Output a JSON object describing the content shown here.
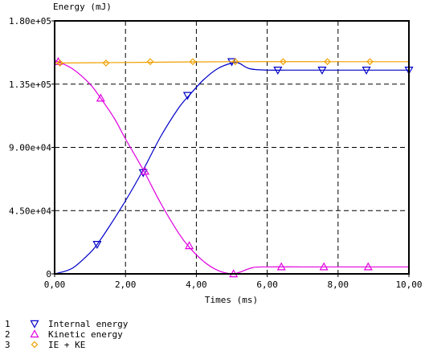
{
  "chart_data": {
    "type": "line",
    "ylabel": "Energy (mJ)",
    "xlabel": "Times (ms)",
    "xlim": [
      0,
      10
    ],
    "ylim": [
      0,
      180000
    ],
    "x_ticks": [
      "0,00",
      "2,00",
      "4,00",
      "6,00",
      "8,00",
      "10,00"
    ],
    "y_ticks": [
      "0",
      "4.50e+04",
      "9.00e+04",
      "1.35e+05",
      "1.80e+05"
    ],
    "grid": true,
    "legend_position": "bottom-left",
    "series": [
      {
        "index": "1",
        "name": "Internal energy",
        "color": "#0000c8",
        "marker": "triangle-down",
        "x": [
          0,
          0.5,
          1.0,
          1.2,
          1.5,
          2.0,
          2.5,
          3.0,
          3.5,
          3.8,
          4.2,
          4.6,
          5.0,
          5.2,
          5.5,
          6.0,
          6.5,
          7.0,
          8.0,
          9.0,
          10.0
        ],
        "y": [
          0,
          4000,
          15000,
          21000,
          32000,
          52000,
          74000,
          98000,
          118000,
          127000,
          138000,
          146000,
          150000,
          150000,
          146000,
          145000,
          145000,
          145000,
          145000,
          145000,
          145000
        ],
        "marker_x": [
          1.2,
          2.5,
          3.75,
          5.0,
          6.3,
          7.55,
          8.8,
          10.0
        ],
        "marker_y": [
          21000,
          72000,
          127000,
          151000,
          145000,
          145000,
          145000,
          145000
        ]
      },
      {
        "index": "2",
        "name": "Kinetic energy",
        "color": "#e000e0",
        "marker": "triangle-up",
        "x": [
          0,
          0.5,
          1.0,
          1.3,
          1.7,
          2.0,
          2.5,
          3.0,
          3.5,
          3.8,
          4.2,
          4.6,
          5.0,
          5.2,
          5.6,
          6.0,
          7.0,
          8.0,
          9.0,
          10.0
        ],
        "y": [
          152000,
          146000,
          135000,
          125000,
          110000,
          96000,
          74000,
          50000,
          29000,
          19000,
          9000,
          2500,
          0,
          1000,
          4500,
          5000,
          5000,
          5000,
          5000,
          5000
        ],
        "marker_x": [
          0.1,
          1.3,
          2.55,
          3.8,
          5.05,
          6.4,
          7.6,
          8.85
        ],
        "marker_y": [
          151000,
          125000,
          73000,
          20000,
          0,
          5000,
          5000,
          5000
        ]
      },
      {
        "index": "3",
        "name": "IE + KE",
        "color": "#f0a000",
        "marker": "diamond",
        "x": [
          0,
          2.5,
          5.0,
          7.5,
          10.0
        ],
        "y": [
          150000,
          150500,
          151000,
          151000,
          151000
        ],
        "marker_x": [
          0.15,
          1.45,
          2.7,
          3.9,
          5.1,
          6.45,
          7.7,
          8.9
        ],
        "marker_y": [
          150000,
          150000,
          151000,
          151000,
          151000,
          151000,
          151000,
          151000
        ]
      }
    ]
  }
}
